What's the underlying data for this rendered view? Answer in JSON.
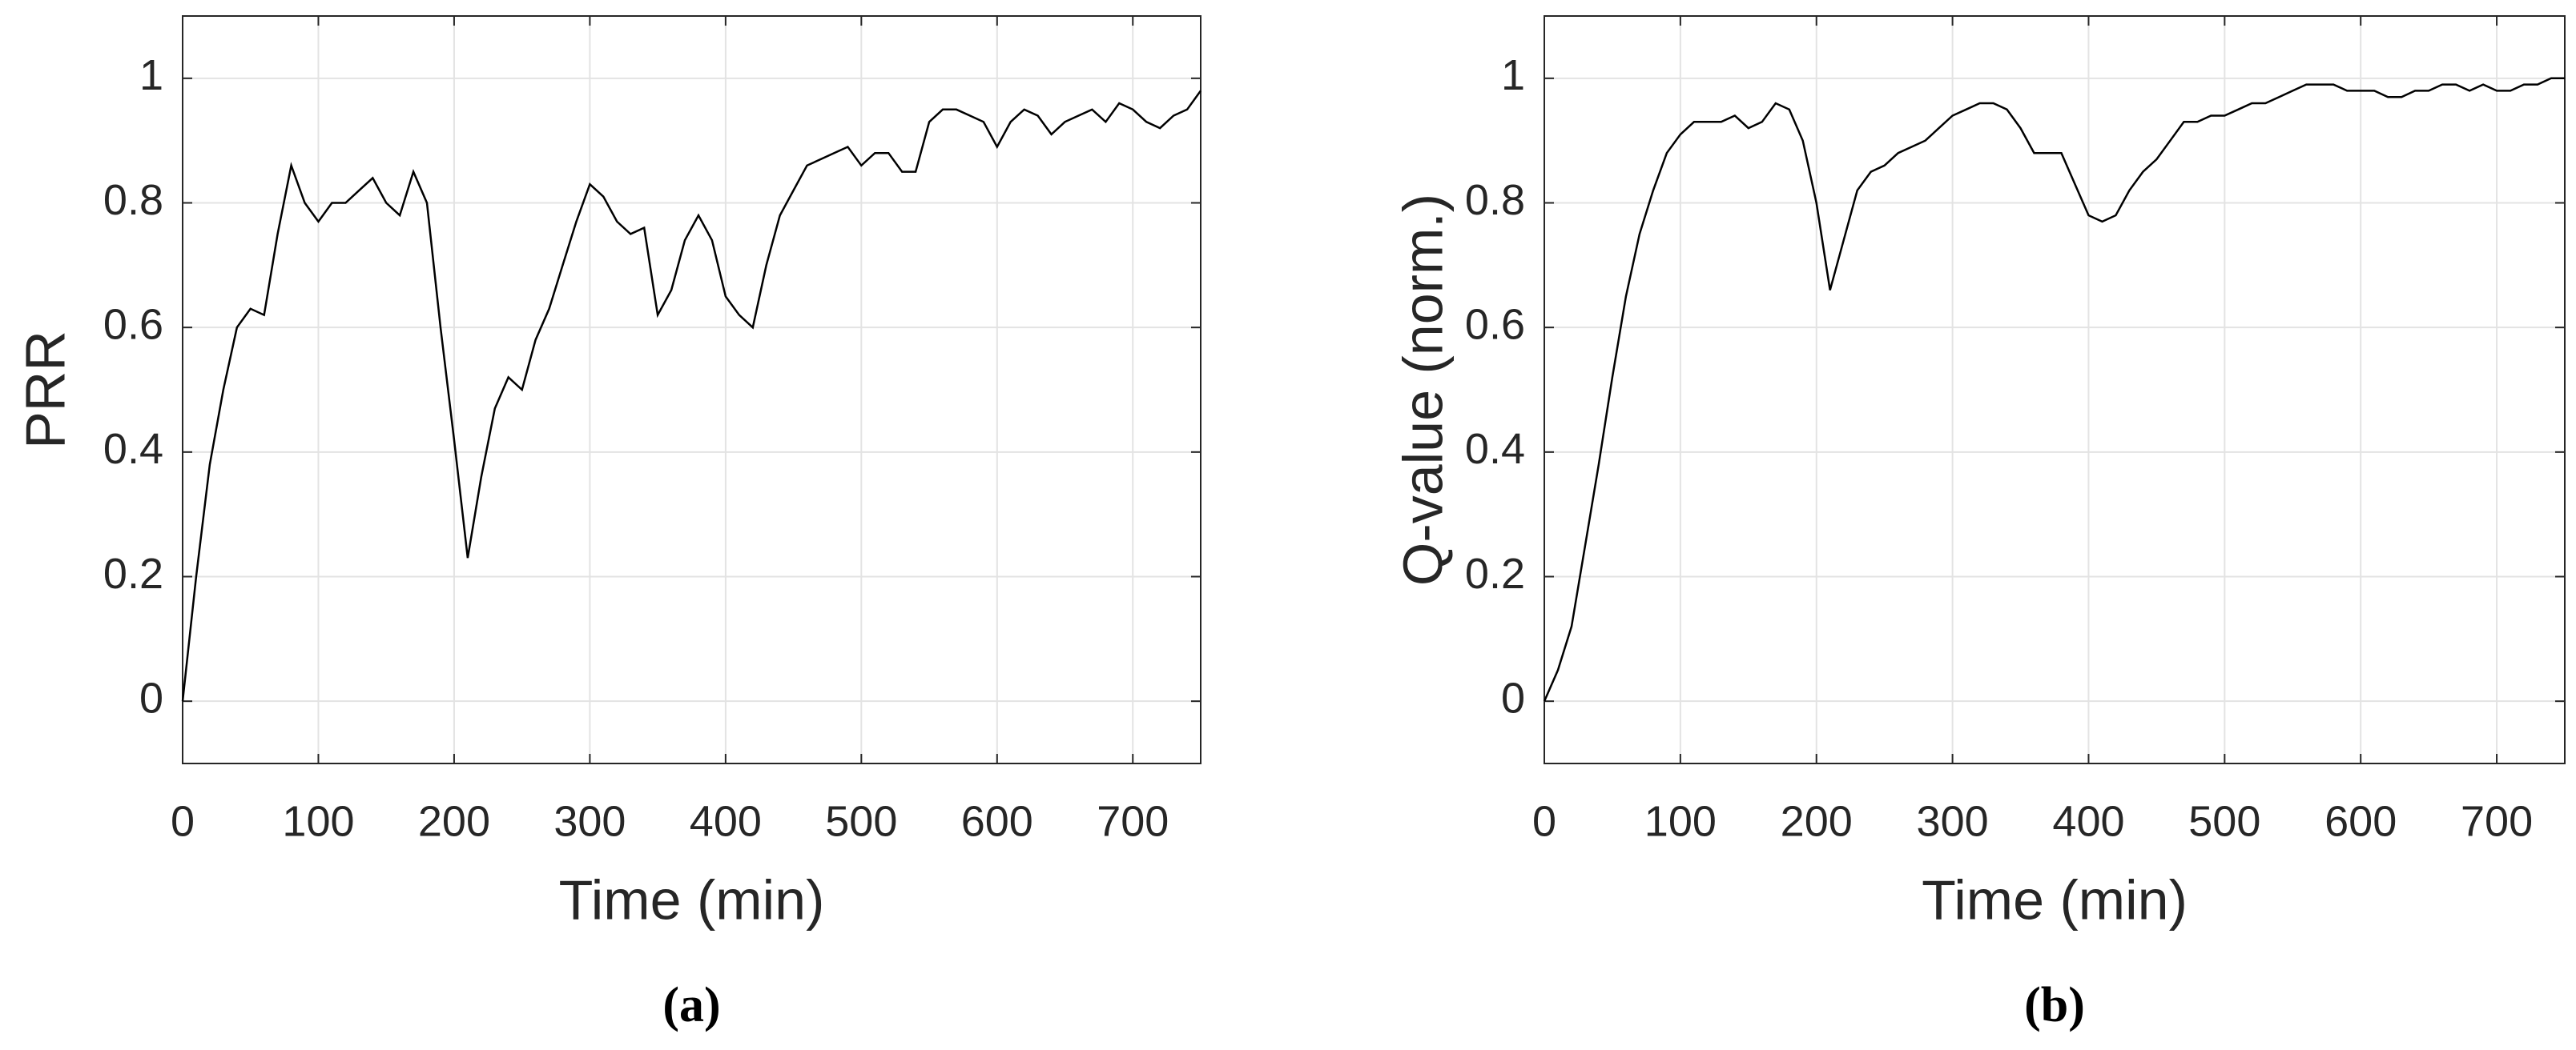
{
  "chart_data": [
    {
      "type": "line",
      "ylabel": "PRR",
      "xlabel": "Time (min)",
      "caption": "(a)",
      "color": "#000000",
      "grid": true,
      "xlim": [
        0,
        750
      ],
      "xticks": [
        0,
        100,
        200,
        300,
        400,
        500,
        600,
        700
      ],
      "ylim": [
        -0.1,
        1.1
      ],
      "yticks": [
        0,
        0.2,
        0.4,
        0.6,
        0.8,
        1
      ],
      "x": [
        0,
        10,
        20,
        30,
        40,
        50,
        60,
        70,
        80,
        90,
        100,
        110,
        120,
        130,
        140,
        150,
        160,
        170,
        180,
        190,
        200,
        210,
        220,
        230,
        240,
        250,
        260,
        270,
        280,
        290,
        300,
        310,
        320,
        330,
        340,
        350,
        360,
        370,
        380,
        390,
        400,
        410,
        420,
        430,
        440,
        450,
        460,
        470,
        480,
        490,
        500,
        510,
        520,
        530,
        540,
        550,
        560,
        570,
        580,
        590,
        600,
        610,
        620,
        630,
        640,
        650,
        660,
        670,
        680,
        690,
        700,
        710,
        720,
        730,
        740,
        750
      ],
      "values": [
        0,
        0.2,
        0.38,
        0.5,
        0.6,
        0.63,
        0.62,
        0.75,
        0.86,
        0.8,
        0.77,
        0.8,
        0.8,
        0.82,
        0.84,
        0.8,
        0.78,
        0.85,
        0.8,
        0.6,
        0.42,
        0.23,
        0.36,
        0.47,
        0.52,
        0.5,
        0.58,
        0.63,
        0.7,
        0.77,
        0.83,
        0.81,
        0.77,
        0.75,
        0.76,
        0.62,
        0.66,
        0.74,
        0.78,
        0.74,
        0.65,
        0.62,
        0.6,
        0.7,
        0.78,
        0.82,
        0.86,
        0.87,
        0.88,
        0.89,
        0.86,
        0.88,
        0.88,
        0.85,
        0.85,
        0.93,
        0.95,
        0.95,
        0.94,
        0.93,
        0.89,
        0.93,
        0.95,
        0.94,
        0.91,
        0.93,
        0.94,
        0.95,
        0.93,
        0.96,
        0.95,
        0.93,
        0.92,
        0.94,
        0.95,
        0.98
      ]
    },
    {
      "type": "line",
      "ylabel": "Q-value (norm.)",
      "xlabel": "Time (min)",
      "caption": "(b)",
      "color": "#000000",
      "grid": true,
      "xlim": [
        0,
        750
      ],
      "xticks": [
        0,
        100,
        200,
        300,
        400,
        500,
        600,
        700
      ],
      "ylim": [
        -0.1,
        1.1
      ],
      "yticks": [
        0,
        0.2,
        0.4,
        0.6,
        0.8,
        1
      ],
      "x": [
        0,
        10,
        20,
        30,
        40,
        50,
        60,
        70,
        80,
        90,
        100,
        110,
        120,
        130,
        140,
        150,
        160,
        170,
        180,
        190,
        200,
        210,
        220,
        230,
        240,
        250,
        260,
        270,
        280,
        290,
        300,
        310,
        320,
        330,
        340,
        350,
        360,
        370,
        380,
        390,
        400,
        410,
        420,
        430,
        440,
        450,
        460,
        470,
        480,
        490,
        500,
        510,
        520,
        530,
        540,
        550,
        560,
        570,
        580,
        590,
        600,
        610,
        620,
        630,
        640,
        650,
        660,
        670,
        680,
        690,
        700,
        710,
        720,
        730,
        740,
        750
      ],
      "values": [
        0,
        0.05,
        0.12,
        0.25,
        0.38,
        0.52,
        0.65,
        0.75,
        0.82,
        0.88,
        0.91,
        0.93,
        0.93,
        0.93,
        0.94,
        0.92,
        0.93,
        0.96,
        0.95,
        0.9,
        0.8,
        0.66,
        0.74,
        0.82,
        0.85,
        0.86,
        0.88,
        0.89,
        0.9,
        0.92,
        0.94,
        0.95,
        0.96,
        0.96,
        0.95,
        0.92,
        0.88,
        0.88,
        0.88,
        0.83,
        0.78,
        0.77,
        0.78,
        0.82,
        0.85,
        0.87,
        0.9,
        0.93,
        0.93,
        0.94,
        0.94,
        0.95,
        0.96,
        0.96,
        0.97,
        0.98,
        0.99,
        0.99,
        0.99,
        0.98,
        0.98,
        0.98,
        0.97,
        0.97,
        0.98,
        0.98,
        0.99,
        0.99,
        0.98,
        0.99,
        0.98,
        0.98,
        0.99,
        0.99,
        1.0,
        1.0
      ]
    }
  ]
}
